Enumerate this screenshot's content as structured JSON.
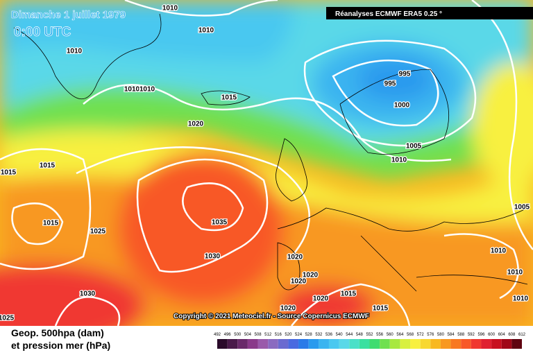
{
  "header": {
    "title": "Dimanche 1 juillet 1979",
    "time": "0:00 UTC",
    "source": "Réanalyses ECMWF ERA5 0.25 °"
  },
  "copyright": "Copyright © 2021 Meteociel.fr - Source Copernicus ECMWF",
  "isobar_labels": [
    1010,
    1010,
    1010,
    1010,
    1010,
    1015,
    1020,
    995,
    995,
    1000,
    1005,
    1010,
    1015,
    1015,
    1015,
    1025,
    1035,
    1030,
    1030,
    1020,
    1020,
    1020,
    1020,
    1015,
    1020,
    1015,
    1005,
    1010,
    1010,
    1010,
    1025
  ],
  "legend": {
    "title": "Geop. 500hpa (dam)",
    "subtitle": "et pression mer (hPa)",
    "scale": [
      492,
      496,
      500,
      504,
      508,
      512,
      516,
      520,
      524,
      528,
      532,
      536,
      540,
      544,
      548,
      552,
      556,
      560,
      564,
      568,
      572,
      576,
      580,
      584,
      588,
      592,
      596,
      600,
      604,
      608,
      612
    ],
    "colors": [
      "#2a0a2a",
      "#4a1a4a",
      "#6a2a6a",
      "#8a3a8a",
      "#9a5aaa",
      "#8a6ac0",
      "#6a6ad0",
      "#4a6ae0",
      "#2a7ae8",
      "#2a9aee",
      "#3ab4f0",
      "#4ac8f0",
      "#5ad8e8",
      "#4ae0c8",
      "#3ae0a0",
      "#40dc70",
      "#70e050",
      "#a8e840",
      "#d8f040",
      "#f8f040",
      "#f8d830",
      "#f8b820",
      "#f89820",
      "#f87820",
      "#f85828",
      "#f03830",
      "#e02030",
      "#c81020",
      "#a00818",
      "#600410",
      "#000000"
    ]
  }
}
